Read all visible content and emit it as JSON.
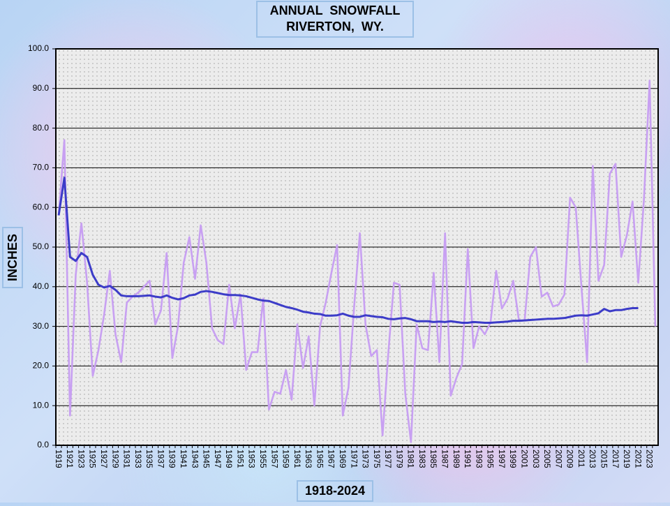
{
  "chart_data": {
    "type": "line",
    "title": [
      "ANNUAL  SNOWFALL",
      "RIVERTON,  WY."
    ],
    "y_label": "INCHES",
    "x_label": "1918-2024",
    "categories": [
      "1919",
      null,
      "1921",
      null,
      "1923",
      null,
      "1925",
      null,
      "1927",
      null,
      "1929",
      null,
      "1931",
      null,
      "1933",
      null,
      "1935",
      null,
      "1937",
      null,
      "1939",
      null,
      "1941",
      null,
      "1943",
      null,
      "1945",
      null,
      "1947",
      null,
      "1949",
      null,
      "1951",
      null,
      "1953",
      null,
      "1955",
      null,
      "1957",
      null,
      "1959",
      null,
      "1961",
      null,
      "1963",
      null,
      "1965",
      null,
      "1967",
      null,
      "1969",
      null,
      "1971",
      null,
      "1973",
      null,
      "1975",
      null,
      "1977",
      null,
      "1979",
      null,
      "1981",
      null,
      "1983",
      null,
      "1985",
      null,
      "1987",
      null,
      "1989",
      null,
      "1991",
      null,
      "1993",
      null,
      "1995",
      null,
      "1997",
      null,
      "1999",
      null,
      "2001",
      null,
      "2003",
      null,
      "2005",
      null,
      "2007",
      null,
      "2009",
      null,
      "2011",
      null,
      "2013",
      null,
      "2015",
      null,
      "2017",
      null,
      "2019",
      null,
      "2021",
      null,
      "2023",
      null
    ],
    "series": [
      {
        "color": "#c8a0f2",
        "values": [
          58,
          77,
          7.5,
          43,
          56,
          41,
          17.5,
          24,
          33,
          44,
          28,
          21,
          36,
          37.5,
          38.5,
          40,
          41.5,
          30.5,
          34,
          48.5,
          22,
          30,
          46,
          52.5,
          42,
          55.5,
          46,
          29.5,
          26.5,
          25.5,
          40.5,
          29.5,
          38,
          19,
          23.5,
          23.5,
          37,
          9,
          13.5,
          13,
          19,
          11.5,
          30.5,
          19.5,
          27.5,
          10,
          30,
          36,
          43.5,
          50.5,
          7.5,
          14.5,
          35,
          53.5,
          30.5,
          22.5,
          24,
          2.5,
          23,
          41,
          40.5,
          13,
          0.8,
          30.5,
          24.5,
          24,
          43.5,
          21,
          53.5,
          12.5,
          17,
          20.5,
          49.5,
          24.5,
          30,
          28,
          31,
          44,
          34.5,
          37,
          41.5,
          31.5,
          31.5,
          47.5,
          50,
          37.5,
          38.5,
          35,
          35.5,
          38,
          62.5,
          60,
          40,
          21,
          70.5,
          41.5,
          45.5,
          68.5,
          71,
          47.5,
          53,
          61.5,
          41,
          62,
          92,
          30
        ]
      },
      {
        "color": "#3c3cc8",
        "values": [
          58,
          67.5,
          47.5,
          46.5,
          48.5,
          47.5,
          43,
          40.5,
          39.8,
          40.2,
          39.2,
          37.8,
          37.6,
          37.6,
          37.6,
          37.7,
          37.8,
          37.5,
          37.3,
          37.8,
          37.2,
          36.8,
          37.1,
          37.8,
          38,
          38.7,
          38.9,
          38.7,
          38.4,
          38.1,
          37.9,
          37.9,
          37.8,
          37.6,
          37.2,
          36.8,
          36.5,
          36.4,
          35.9,
          35.4,
          34.9,
          34.6,
          34.2,
          33.7,
          33.5,
          33.2,
          33.1,
          32.7,
          32.7,
          32.8,
          33.2,
          32.7,
          32.4,
          32.4,
          32.8,
          32.6,
          32.4,
          32.3,
          31.9,
          31.8,
          32,
          32.1,
          31.8,
          31.3,
          31.3,
          31.3,
          31.1,
          31.2,
          31.1,
          31.3,
          31.1,
          30.9,
          30.9,
          31.1,
          31,
          30.9,
          30.9,
          31,
          31.1,
          31.2,
          31.4,
          31.4,
          31.5,
          31.6,
          31.7,
          31.8,
          31.9,
          31.9,
          32,
          32.1,
          32.4,
          32.7,
          32.8,
          32.7,
          33,
          33.3,
          34.4,
          33.8,
          34.1,
          34.1,
          34.4,
          34.6,
          34.6,
          null,
          null,
          null
        ]
      }
    ],
    "ylim": [
      0,
      100
    ],
    "yticks": [
      {
        "value": 0,
        "label": "0.0"
      },
      {
        "value": 10,
        "label": "10.0"
      },
      {
        "value": 20,
        "label": "20.0"
      },
      {
        "value": 30,
        "label": "30.0"
      },
      {
        "value": 40,
        "label": "40.0"
      },
      {
        "value": 50,
        "label": "50.0"
      },
      {
        "value": 60,
        "label": "60.0"
      },
      {
        "value": 70,
        "label": "70.0"
      },
      {
        "value": 80,
        "label": "80.0"
      },
      {
        "value": 90,
        "label": "90.0"
      },
      {
        "value": 100,
        "label": "100.0"
      }
    ],
    "grid": true
  }
}
